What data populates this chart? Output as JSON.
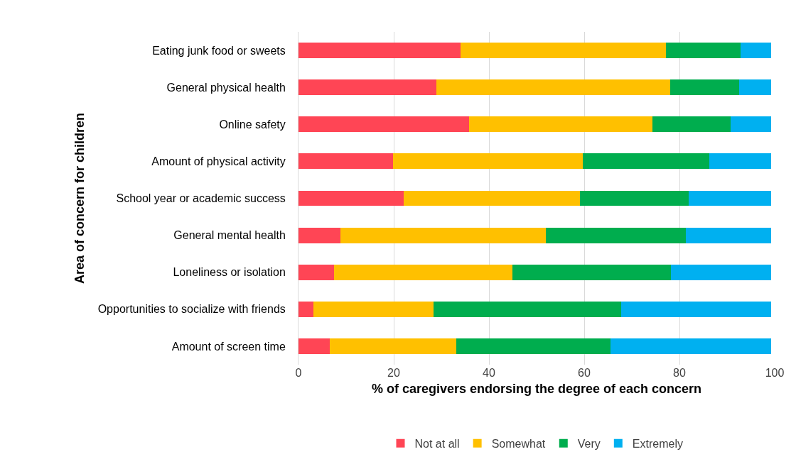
{
  "chart_data": {
    "type": "bar",
    "orientation": "horizontal",
    "stacked": true,
    "xlabel": "% of caregivers endorsing the degree of each concern",
    "ylabel": "Area of concern for children",
    "categories": [
      "Eating junk food or sweets",
      "General physical health",
      "Online safety",
      "Amount of physical activity",
      "School year or academic success",
      "General mental health",
      "Loneliness or isolation",
      "Opportunities to socialize with friends",
      "Amount of screen time"
    ],
    "series": [
      {
        "name": "Not at all",
        "color": "#ff4555",
        "values": [
          34.1,
          28.9,
          35.8,
          19.8,
          22.1,
          8.8,
          7.4,
          3.1,
          6.6
        ]
      },
      {
        "name": "Somewhat",
        "color": "#ffc000",
        "values": [
          43.1,
          49.2,
          38.5,
          39.9,
          37.0,
          43.2,
          37.5,
          25.3,
          26.6
        ]
      },
      {
        "name": "Very",
        "color": "#00ad4e",
        "values": [
          15.7,
          14.4,
          16.5,
          26.6,
          22.9,
          29.4,
          33.3,
          39.3,
          32.3
        ]
      },
      {
        "name": "Extremely",
        "color": "#00b0f0",
        "values": [
          6.4,
          6.8,
          8.5,
          13.0,
          17.3,
          17.9,
          21.1,
          31.6,
          33.8
        ]
      }
    ],
    "xlim": [
      0,
      100
    ],
    "xticks": [
      0,
      20,
      40,
      60,
      80,
      100
    ],
    "grid": "x",
    "legend": "bottom"
  }
}
